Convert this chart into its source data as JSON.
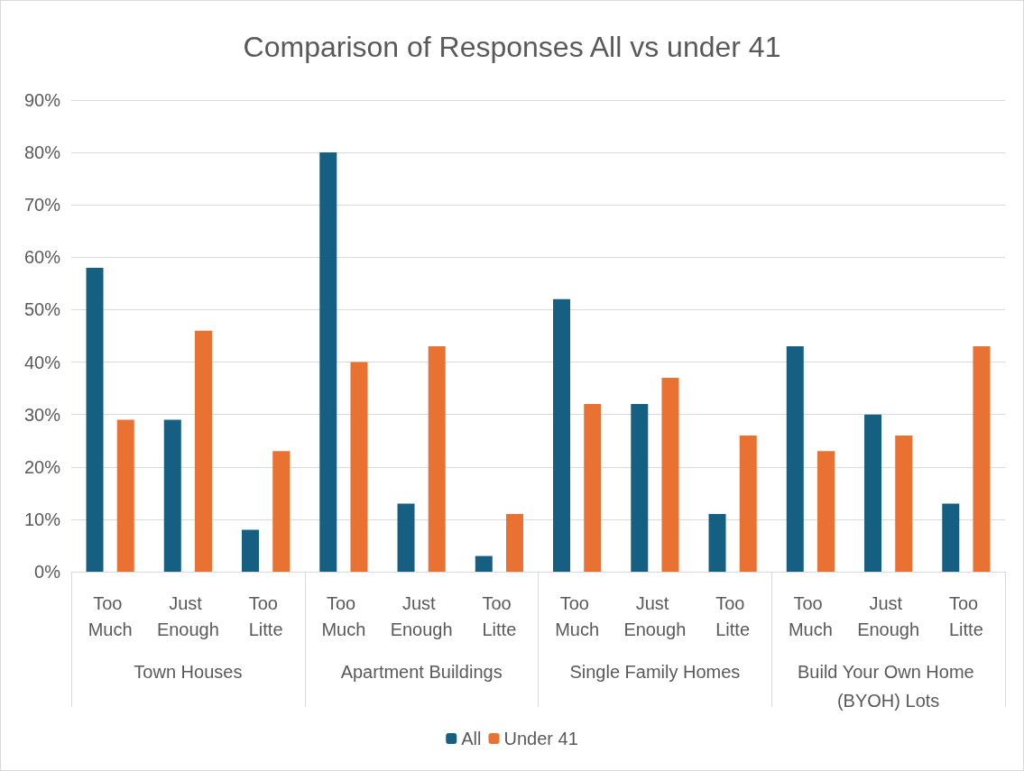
{
  "chart_data": {
    "type": "bar",
    "title": "Comparison of Responses All vs under 41",
    "categories": [
      "Too Much",
      "Just Enough",
      "Too Litte",
      "Too Much",
      "Just Enough",
      "Too Litte",
      "Too Much",
      "Just Enough",
      "Too Litte",
      "Too Much",
      "Just Enough",
      "Too Litte"
    ],
    "annotations": [
      "Town Houses",
      "Apartment Buildings",
      "Single Family Homes",
      "Build Your Own Home (BYOH) Lots"
    ],
    "series": [
      {
        "name": "All",
        "color": "#156082",
        "values": [
          58,
          29,
          8,
          80,
          13,
          3,
          52,
          32,
          11,
          43,
          30,
          13
        ]
      },
      {
        "name": "Under 41",
        "color": "#e97132",
        "values": [
          29,
          46,
          23,
          40,
          43,
          11,
          32,
          37,
          26,
          23,
          26,
          43
        ]
      }
    ],
    "ylim": [
      0,
      90
    ],
    "yticks": [
      {
        "value": 0,
        "label": "0%"
      },
      {
        "value": 10,
        "label": "10%"
      },
      {
        "value": 20,
        "label": "20%"
      },
      {
        "value": 30,
        "label": "30%"
      },
      {
        "value": 40,
        "label": "40%"
      },
      {
        "value": 50,
        "label": "50%"
      },
      {
        "value": 60,
        "label": "60%"
      },
      {
        "value": 70,
        "label": "70%"
      },
      {
        "value": 80,
        "label": "80%"
      },
      {
        "value": 90,
        "label": "90%"
      }
    ],
    "grid": "y",
    "legend": "bottom"
  }
}
